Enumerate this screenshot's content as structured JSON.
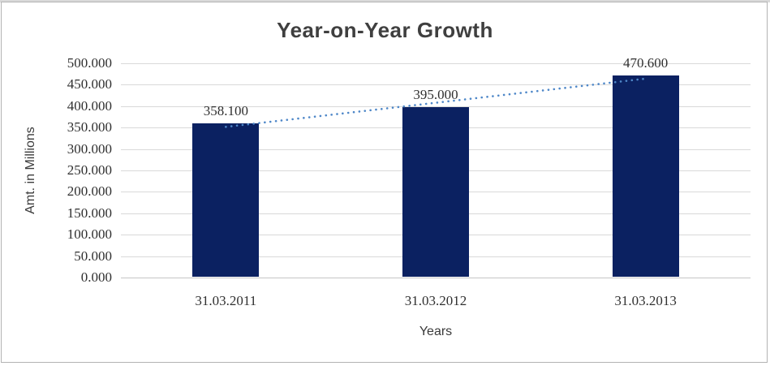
{
  "window": {
    "background": "#ffffff",
    "frame_border_color": "#b3b3b3"
  },
  "chart_data": {
    "type": "bar",
    "title": "Year-on-Year Growth",
    "categories": [
      "31.03.2011",
      "31.03.2012",
      "31.03.2013"
    ],
    "values": [
      358.1,
      395.0,
      470.6
    ],
    "value_labels": [
      "358.100",
      "395.000",
      "470.600"
    ],
    "xlabel": "Years",
    "ylabel": "Amt. in Millions",
    "ylim": [
      0,
      500
    ],
    "ytick_step": 50,
    "ytick_labels": [
      "500.000",
      "450.000",
      "400.000",
      "350.000",
      "300.000",
      "250.000",
      "200.000",
      "150.000",
      "100.000",
      "50.000",
      "0.000"
    ],
    "grid": true,
    "legend": "none",
    "bar_color": "#0b2161",
    "trendline": {
      "type": "linear",
      "style": "dotted",
      "color": "#4e87c8",
      "fit_values_at_categories": [
        351.65,
        407.9,
        464.15
      ]
    }
  }
}
